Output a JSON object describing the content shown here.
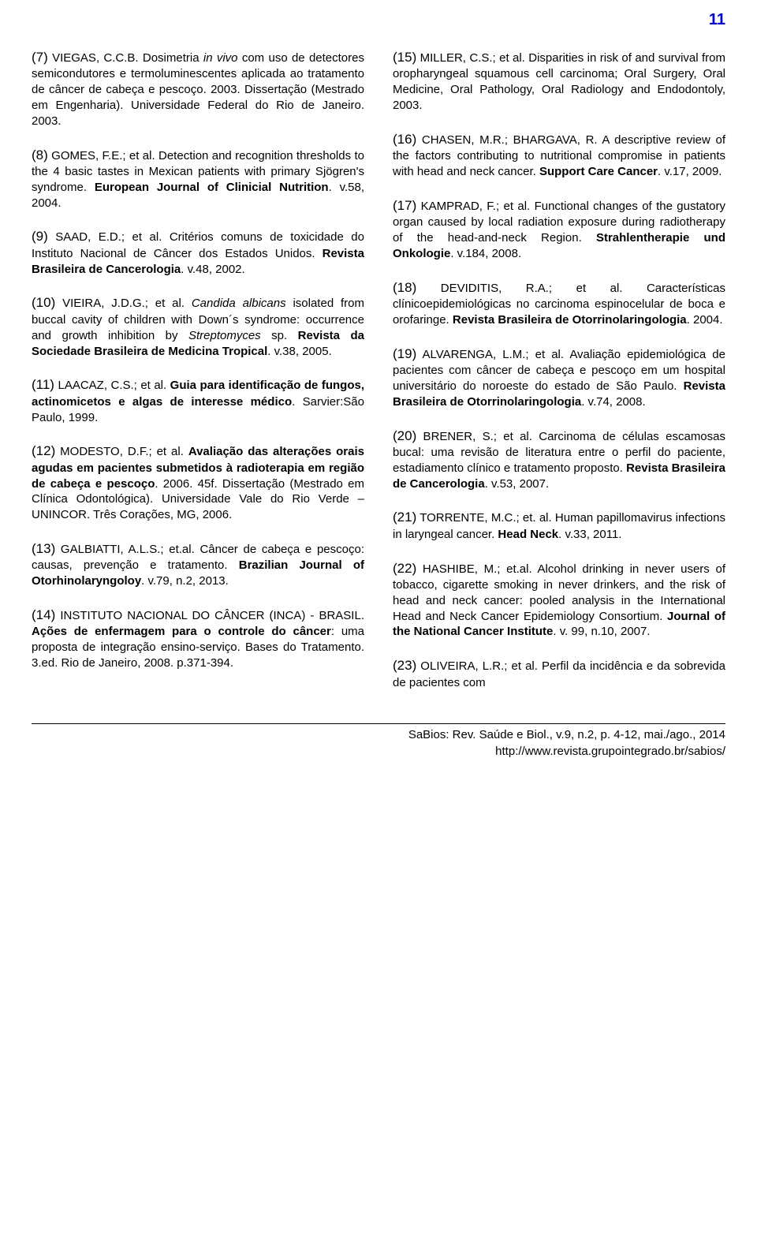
{
  "page_number": "11",
  "left": [
    {
      "num": "(7)",
      "body": [
        {
          "t": "    VIEGAS, C.C.B. Dosimetria "
        },
        {
          "t": "in vivo",
          "i": true
        },
        {
          "t": " com uso de detectores semicondutores e termoluminescentes aplicada ao tratamento de câncer de cabeça e pescoço. 2003. Dissertação (Mestrado em Engenharia). Universidade Federal do Rio de Janeiro. 2003."
        }
      ]
    },
    {
      "num": "(8)",
      "body": [
        {
          "t": "    GOMES, F.E.; et al. Detection and recognition thresholds to the 4 basic tastes in Mexican patients with primary Sjögren's syndrome. "
        },
        {
          "t": "European Journal of Clinicial Nutrition",
          "b": true
        },
        {
          "t": ". v.58, 2004."
        }
      ]
    },
    {
      "num": "(9)",
      "body": [
        {
          "t": "    SAAD, E.D.; et al. Critérios comuns de toxicidade do Instituto Nacional de Câncer dos Estados Unidos. "
        },
        {
          "t": "Revista Brasileira de Cancerologia",
          "b": true
        },
        {
          "t": ". v.48, 2002."
        }
      ]
    },
    {
      "num": "(10)",
      "body": [
        {
          "t": "    VIEIRA, J.D.G.; et al. "
        },
        {
          "t": "Candida albicans",
          "i": true
        },
        {
          "t": " isolated from buccal cavity of children with Down´s syndrome: occurrence and growth inhibition by "
        },
        {
          "t": "Streptomyces",
          "i": true
        },
        {
          "t": " sp. "
        },
        {
          "t": "Revista da Sociedade Brasileira de Medicina Tropical",
          "b": true
        },
        {
          "t": ". v.38, 2005."
        }
      ]
    },
    {
      "num": "(11)",
      "body": [
        {
          "t": "    LAACAZ, C.S.; et al. "
        },
        {
          "t": "Guia para identificação de fungos, actinomicetos e algas de interesse médico",
          "b": true
        },
        {
          "t": ". Sarvier:São Paulo, 1999."
        }
      ]
    },
    {
      "num": "(12)",
      "body": [
        {
          "t": "    MODESTO, D.F.; et al. "
        },
        {
          "t": "Avaliação das alterações orais agudas em pacientes submetidos à radioterapia em região de cabeça e pescoço",
          "b": true
        },
        {
          "t": ". 2006. 45f. Dissertação (Mestrado em Clínica Odontológica). Universidade Vale do Rio Verde – UNINCOR. Três Corações, MG, 2006."
        }
      ]
    },
    {
      "num": "(13)",
      "body": [
        {
          "t": "    GALBIATTI, A.L.S.; et.al. Câncer de cabeça e pescoço: causas, prevenção e tratamento. "
        },
        {
          "t": "Brazilian Journal of Otorhinolaryngoloy",
          "b": true
        },
        {
          "t": ". v.79, n.2, 2013."
        }
      ]
    },
    {
      "num": "(14)",
      "body": [
        {
          "t": "    INSTITUTO NACIONAL DO CÂNCER (INCA) - BRASIL. "
        },
        {
          "t": "Ações de enfermagem para o controle do câncer",
          "b": true
        },
        {
          "t": ": uma proposta de integração ensino-serviço. Bases do Tratamento. 3.ed. Rio de Janeiro, 2008. p.371-394."
        }
      ]
    }
  ],
  "right": [
    {
      "num": "(15)",
      "body": [
        {
          "t": "    MILLER, C.S.; et al. Disparities in risk of and survival from oropharyngeal squamous cell carcinoma; Oral Surgery, Oral Medicine, Oral Pathology, Oral Radiology and Endodontoly, 2003."
        }
      ]
    },
    {
      "num": "(16)",
      "body": [
        {
          "t": "    CHASEN, M.R.; BHARGAVA, R. A descriptive review of the factors contributing to nutritional compromise in patients with head and neck cancer. "
        },
        {
          "t": "Support Care Cancer",
          "b": true
        },
        {
          "t": ". v.17, 2009."
        }
      ]
    },
    {
      "num": "(17)",
      "body": [
        {
          "t": "    KAMPRAD, F.; et al. Functional changes of the gustatory organ caused by local radiation exposure during radiotherapy of the head-and-neck Region. "
        },
        {
          "t": "Strahlentherapie und Onkologie",
          "b": true
        },
        {
          "t": ". v.184, 2008."
        }
      ]
    },
    {
      "num": "(18)",
      "body": [
        {
          "t": "    DEVIDITIS, R.A.; et al. Características clínicoepidemiológicas no carcinoma espinocelular de boca e orofaringe. "
        },
        {
          "t": "Revista Brasileira de Otorrinolaringologia",
          "b": true
        },
        {
          "t": ". 2004."
        }
      ]
    },
    {
      "num": "(19)",
      "body": [
        {
          "t": "    ALVARENGA, L.M.; et al. Avaliação epidemiológica de pacientes com câncer de cabeça e pescoço em um hospital universitário do noroeste do estado de São Paulo. "
        },
        {
          "t": "Revista Brasileira de Otorrinolaringologia",
          "b": true
        },
        {
          "t": ". v.74, 2008."
        }
      ]
    },
    {
      "num": "(20)",
      "body": [
        {
          "t": "    BRENER, S.; et al. Carcinoma de células escamosas bucal: uma revisão de literatura entre o perfil do paciente, estadiamento clínico e tratamento proposto. "
        },
        {
          "t": "Revista Brasileira de Cancerologia",
          "b": true
        },
        {
          "t": ". v.53, 2007."
        }
      ]
    },
    {
      "num": "(21)",
      "body": [
        {
          "t": "    TORRENTE, M.C.; et. al. Human papillomavirus infections in laryngeal cancer. "
        },
        {
          "t": "Head Neck",
          "b": true
        },
        {
          "t": ". v.33, 2011."
        }
      ]
    },
    {
      "num": "(22)",
      "body": [
        {
          "t": "    HASHIBE, M.; et.al. Alcohol drinking in never users of tobacco, cigarette smoking in never drinkers, and the risk of head and neck cancer: pooled analysis in the International Head and Neck Cancer Epidemiology Consortium. "
        },
        {
          "t": "Journal of the National Cancer Institute",
          "b": true
        },
        {
          "t": ". v. 99, n.10, 2007."
        }
      ]
    },
    {
      "num": "(23)",
      "body": [
        {
          "t": "    OLIVEIRA, L.R.; et al. Perfil da incidência e da sobrevida de pacientes com"
        }
      ]
    }
  ],
  "footer": {
    "line1": "SaBios: Rev. Saúde e Biol., v.9, n.2, p. 4-12, mai./ago., 2014",
    "line2": "http://www.revista.grupointegrado.br/sabios/"
  }
}
